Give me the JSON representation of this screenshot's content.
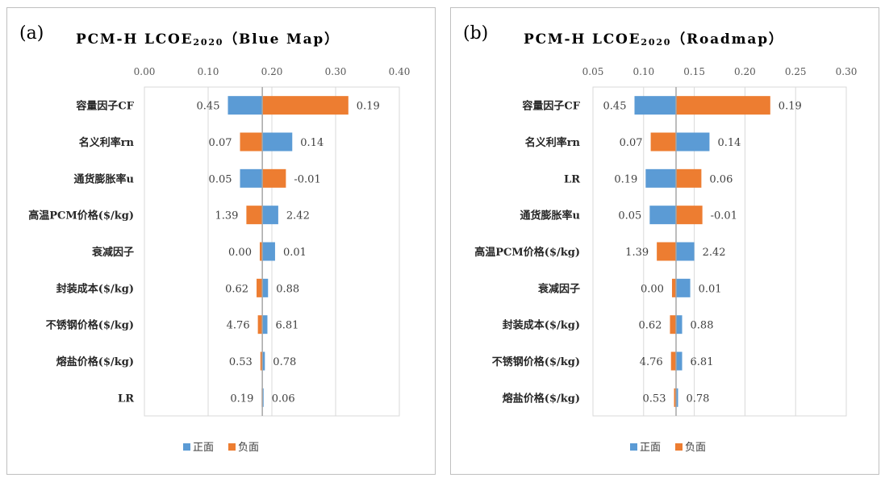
{
  "colors": {
    "positive": "#5b9bd5",
    "negative": "#ed7d31",
    "grid": "#d9d9d9",
    "axis": "#a6a6a6"
  },
  "legend": [
    {
      "key": "positive",
      "label": "正面"
    },
    {
      "key": "negative",
      "label": "负面"
    }
  ],
  "chart_data": [
    {
      "type": "bar",
      "orientation": "horizontal",
      "panel_label": "(a)",
      "title": "PCM-H LCOE",
      "title_sub": "2020",
      "title_suffix": "（Blue Map）",
      "xlim": [
        0,
        0.4
      ],
      "xticks": [
        "0.00",
        "0.10",
        "0.20",
        "0.30",
        "0.40"
      ],
      "baseline": 0.185,
      "grid": true,
      "legend_position": "bottom",
      "categories": [
        "容量因子CF",
        "名义利率rn",
        "通货膨胀率u",
        "高温PCM价格($/kg)",
        "衰减因子",
        "封装成本($/kg)",
        "不锈钢价格($/kg)",
        "熔盐价格($/kg)",
        "LR"
      ],
      "left_labels": [
        "0.45",
        "0.07",
        "0.05",
        "1.39",
        "0.00",
        "0.62",
        "4.76",
        "0.53",
        "0.19"
      ],
      "right_labels": [
        "0.19",
        "0.14",
        "-0.01",
        "2.42",
        "0.01",
        "0.88",
        "6.81",
        "0.78",
        "0.06"
      ],
      "series": [
        {
          "name": "正面",
          "key": "positive",
          "start": [
            0.131,
            0.185,
            0.15,
            0.185,
            0.185,
            0.185,
            0.185,
            0.185,
            0.185
          ],
          "end": [
            0.185,
            0.232,
            0.185,
            0.21,
            0.205,
            0.194,
            0.193,
            0.189,
            0.187
          ]
        },
        {
          "name": "负面",
          "key": "negative",
          "start": [
            0.185,
            0.15,
            0.185,
            0.16,
            0.181,
            0.176,
            0.178,
            0.182,
            0.184
          ],
          "end": [
            0.32,
            0.185,
            0.222,
            0.185,
            0.185,
            0.185,
            0.185,
            0.185,
            0.185
          ]
        }
      ]
    },
    {
      "type": "bar",
      "orientation": "horizontal",
      "panel_label": "(b)",
      "title": "PCM-H LCOE",
      "title_sub": "2020",
      "title_suffix": "（Roadmap）",
      "xlim": [
        0.05,
        0.3
      ],
      "xticks": [
        "0.05",
        "0.10",
        "0.15",
        "0.20",
        "0.25",
        "0.30"
      ],
      "baseline": 0.132,
      "grid": true,
      "legend_position": "bottom",
      "categories": [
        "容量因子CF",
        "名义利率rn",
        "LR",
        "通货膨胀率u",
        "高温PCM价格($/kg)",
        "衰减因子",
        "封装成本($/kg)",
        "不锈钢价格($/kg)",
        "熔盐价格($/kg)"
      ],
      "left_labels": [
        "0.45",
        "0.07",
        "0.19",
        "0.05",
        "1.39",
        "0.00",
        "0.62",
        "4.76",
        "0.53"
      ],
      "right_labels": [
        "0.19",
        "0.14",
        "0.06",
        "-0.01",
        "2.42",
        "0.01",
        "0.88",
        "6.81",
        "0.78"
      ],
      "series": [
        {
          "name": "正面",
          "key": "positive",
          "start": [
            0.091,
            0.132,
            0.102,
            0.106,
            0.132,
            0.132,
            0.132,
            0.132,
            0.132
          ],
          "end": [
            0.132,
            0.165,
            0.132,
            0.132,
            0.15,
            0.146,
            0.138,
            0.138,
            0.134
          ]
        },
        {
          "name": "负面",
          "key": "negative",
          "start": [
            0.132,
            0.107,
            0.132,
            0.132,
            0.113,
            0.128,
            0.126,
            0.127,
            0.13
          ],
          "end": [
            0.225,
            0.132,
            0.157,
            0.158,
            0.132,
            0.132,
            0.132,
            0.132,
            0.132
          ]
        }
      ]
    }
  ]
}
